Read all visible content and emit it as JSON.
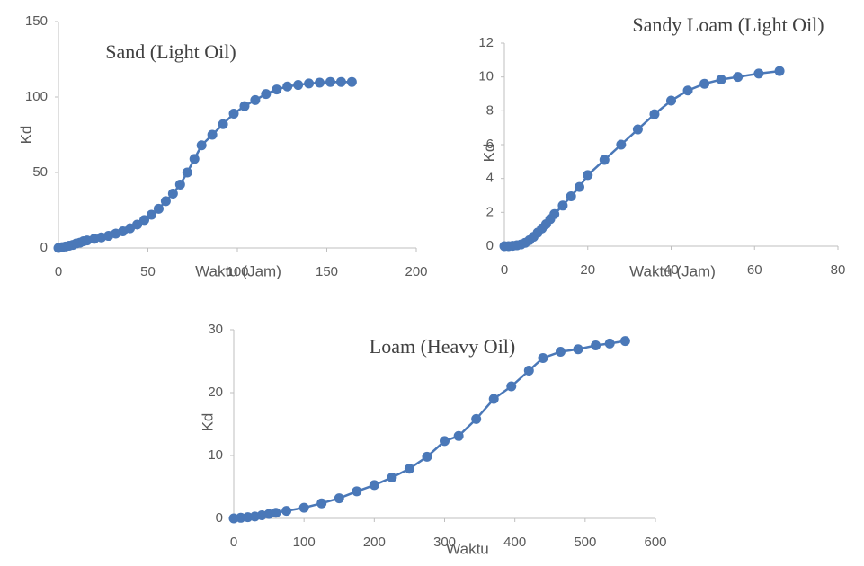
{
  "chart_data": [
    {
      "type": "line",
      "title": "Sand (Light Oil)",
      "x_label": "Waktu (Jam)",
      "y_label": "Kd",
      "color": "#4a78b8",
      "markers": true,
      "x": [
        0,
        2,
        4,
        6,
        8,
        10,
        12,
        14,
        16,
        20,
        24,
        28,
        32,
        36,
        40,
        44,
        48,
        52,
        56,
        60,
        64,
        68,
        72,
        76,
        80,
        86,
        92,
        98,
        104,
        110,
        116,
        122,
        128,
        134,
        140,
        146,
        152,
        158,
        164
      ],
      "values": [
        0,
        0.5,
        1,
        1.5,
        2,
        3,
        3.5,
        4.5,
        5,
        6,
        7,
        8,
        9.5,
        11,
        13,
        15.5,
        18.5,
        22,
        26,
        31,
        36,
        42,
        50,
        59,
        68,
        75,
        82,
        89,
        94,
        98,
        102,
        105,
        107,
        108,
        109,
        109.5,
        110,
        110,
        110
      ],
      "xlim": [
        0,
        200
      ],
      "xticks": [
        0,
        50,
        100,
        150,
        200
      ],
      "ylim": [
        0,
        150
      ],
      "yticks": [
        0,
        50,
        100,
        150
      ]
    },
    {
      "type": "line",
      "title": "Sandy Loam (Light Oil)",
      "x_label": "Waktu (Jam)",
      "y_label": "Kd",
      "color": "#4a78b8",
      "markers": true,
      "x": [
        0,
        1,
        2,
        3,
        4,
        5,
        6,
        7,
        8,
        9,
        10,
        11,
        12,
        14,
        16,
        18,
        20,
        24,
        28,
        32,
        36,
        40,
        44,
        48,
        52,
        56,
        61,
        66
      ],
      "values": [
        0,
        0,
        0.02,
        0.05,
        0.1,
        0.2,
        0.35,
        0.55,
        0.8,
        1.05,
        1.3,
        1.6,
        1.9,
        2.4,
        2.95,
        3.5,
        4.2,
        5.1,
        6.0,
        6.9,
        7.8,
        8.6,
        9.2,
        9.6,
        9.85,
        10.0,
        10.2,
        10.35
      ],
      "xlim": [
        0,
        80
      ],
      "xticks": [
        0,
        20,
        40,
        60,
        80
      ],
      "ylim": [
        0,
        12
      ],
      "yticks": [
        0,
        2,
        4,
        6,
        8,
        10,
        12
      ]
    },
    {
      "type": "line",
      "title": "Loam (Heavy Oil)",
      "x_label": "Waktu",
      "y_label": "Kd",
      "color": "#4a78b8",
      "markers": true,
      "x": [
        0,
        10,
        20,
        30,
        40,
        50,
        60,
        75,
        100,
        125,
        150,
        175,
        200,
        225,
        250,
        275,
        300,
        320,
        345,
        370,
        395,
        420,
        440,
        465,
        490,
        515,
        535,
        557
      ],
      "values": [
        0,
        0.1,
        0.2,
        0.3,
        0.5,
        0.7,
        0.9,
        1.2,
        1.7,
        2.4,
        3.2,
        4.3,
        5.3,
        6.5,
        7.9,
        9.8,
        12.3,
        13.1,
        15.8,
        19.0,
        21.0,
        23.5,
        25.5,
        26.5,
        26.9,
        27.5,
        27.8,
        28.2
      ],
      "xlim": [
        0,
        600
      ],
      "xticks": [
        0,
        100,
        200,
        300,
        400,
        500,
        600
      ],
      "ylim": [
        0,
        30
      ],
      "yticks": [
        0,
        10,
        20,
        30
      ]
    }
  ]
}
